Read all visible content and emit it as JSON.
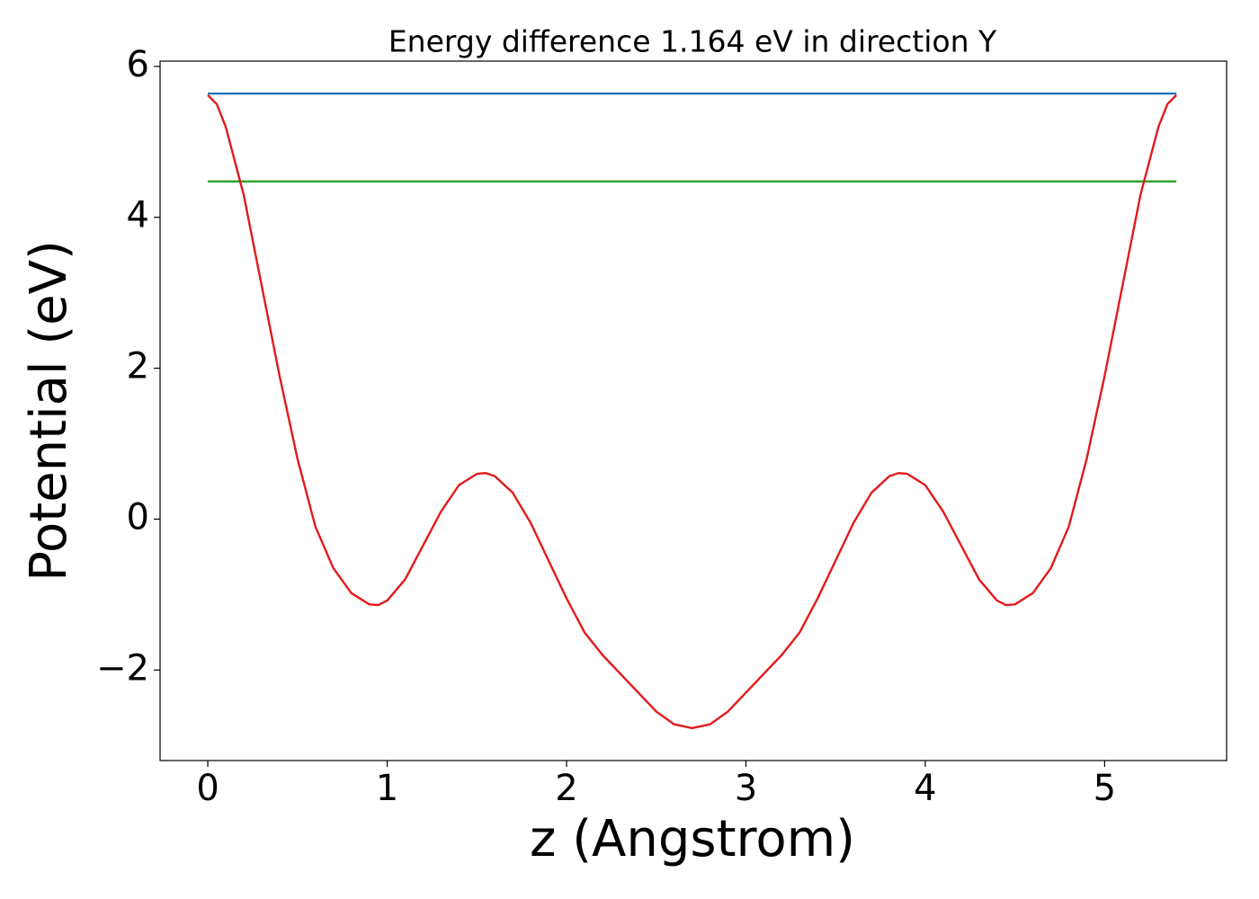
{
  "chart_data": {
    "type": "line",
    "title": "Energy difference 1.164 eV in direction Y",
    "x_label": "z (Angstrom)",
    "y_label": "Potential (eV)",
    "xlim": [
      -0.266,
      5.68
    ],
    "ylim": [
      -3.2,
      6.07
    ],
    "xticks": [
      0,
      1,
      2,
      3,
      4,
      5
    ],
    "yticks": [
      {
        "value": -2,
        "label": "−2"
      },
      0,
      2,
      4,
      6
    ],
    "grid": false,
    "series": [
      {
        "color": "#1f77b4",
        "x": [
          0,
          5.4
        ],
        "values": [
          5.64,
          5.64
        ]
      },
      {
        "color": "#2ca02c",
        "x": [
          0,
          5.4
        ],
        "values": [
          4.476,
          4.476
        ]
      },
      {
        "color": "#e31a1c",
        "x": [
          0,
          0.05,
          0.1,
          0.2,
          0.3,
          0.4,
          0.5,
          0.6,
          0.7,
          0.8,
          0.9,
          0.95,
          1.0,
          1.1,
          1.2,
          1.3,
          1.4,
          1.5,
          1.55,
          1.6,
          1.7,
          1.8,
          1.9,
          2.0,
          2.1,
          2.2,
          2.3,
          2.4,
          2.5,
          2.6,
          2.7,
          2.8,
          2.9,
          3.0,
          3.1,
          3.2,
          3.3,
          3.4,
          3.5,
          3.6,
          3.7,
          3.8,
          3.85,
          3.9,
          4.0,
          4.1,
          4.2,
          4.3,
          4.4,
          4.45,
          4.5,
          4.6,
          4.7,
          4.8,
          4.9,
          5.0,
          5.1,
          5.2,
          5.3,
          5.35,
          5.4
        ],
        "values": [
          5.62,
          5.5,
          5.2,
          4.3,
          3.1,
          1.9,
          0.8,
          -0.1,
          -0.65,
          -0.98,
          -1.13,
          -1.14,
          -1.08,
          -0.8,
          -0.35,
          0.1,
          0.45,
          0.6,
          0.61,
          0.57,
          0.35,
          -0.05,
          -0.55,
          -1.05,
          -1.5,
          -1.8,
          -2.05,
          -2.3,
          -2.55,
          -2.72,
          -2.77,
          -2.72,
          -2.55,
          -2.3,
          -2.05,
          -1.8,
          -1.5,
          -1.05,
          -0.55,
          -0.05,
          0.35,
          0.57,
          0.61,
          0.6,
          0.45,
          0.1,
          -0.35,
          -0.8,
          -1.08,
          -1.14,
          -1.13,
          -0.98,
          -0.65,
          -0.1,
          0.8,
          1.9,
          3.1,
          4.3,
          5.2,
          5.5,
          5.62
        ]
      }
    ]
  }
}
